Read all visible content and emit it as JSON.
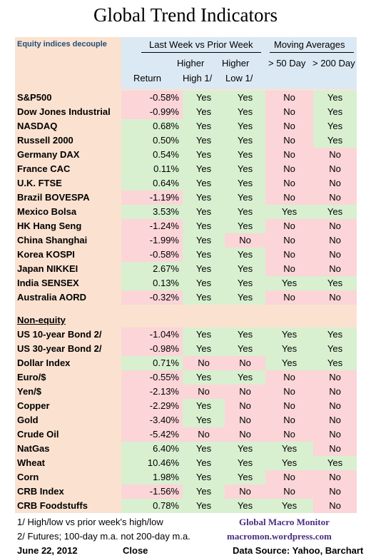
{
  "title": "Global Trend Indicators",
  "subtitle": "Equity indices decouple",
  "header": {
    "group1": "Last Week vs Prior Week",
    "group2": "Moving Averages",
    "return": "Return",
    "higher_high_1": "Higher",
    "higher_high_2": "High 1/",
    "higher_low_1": "Higher",
    "higher_low_2": "Low 1/",
    "ma50": "> 50 Day",
    "ma200": "> 200 Day"
  },
  "equities": [
    {
      "name": "S&P500",
      "ret": "-0.58%",
      "hh": "Yes",
      "hl": "Yes",
      "ma50": "No",
      "ma200": "Yes"
    },
    {
      "name": "Dow Jones Industrial",
      "ret": "-0.99%",
      "hh": "Yes",
      "hl": "Yes",
      "ma50": "No",
      "ma200": "Yes"
    },
    {
      "name": "NASDAQ",
      "ret": "0.68%",
      "hh": "Yes",
      "hl": "Yes",
      "ma50": "No",
      "ma200": "Yes"
    },
    {
      "name": "Russell 2000",
      "ret": "0.50%",
      "hh": "Yes",
      "hl": "Yes",
      "ma50": "No",
      "ma200": "Yes"
    },
    {
      "name": "Germany DAX",
      "ret": "0.54%",
      "hh": "Yes",
      "hl": "Yes",
      "ma50": "No",
      "ma200": "No"
    },
    {
      "name": "France CAC",
      "ret": "0.11%",
      "hh": "Yes",
      "hl": "Yes",
      "ma50": "No",
      "ma200": "No"
    },
    {
      "name": "U.K. FTSE",
      "ret": "0.64%",
      "hh": "Yes",
      "hl": "Yes",
      "ma50": "No",
      "ma200": "No"
    },
    {
      "name": "Brazil BOVESPA",
      "ret": "-1.19%",
      "hh": "Yes",
      "hl": "Yes",
      "ma50": "No",
      "ma200": "No"
    },
    {
      "name": "Mexico Bolsa",
      "ret": "3.53%",
      "hh": "Yes",
      "hl": "Yes",
      "ma50": "Yes",
      "ma200": "Yes"
    },
    {
      "name": "HK  Hang Seng",
      "ret": "-1.24%",
      "hh": "Yes",
      "hl": "Yes",
      "ma50": "No",
      "ma200": "No"
    },
    {
      "name": "China Shanghai",
      "ret": "-1.99%",
      "hh": "Yes",
      "hl": "No",
      "ma50": "No",
      "ma200": "No"
    },
    {
      "name": "Korea KOSPI",
      "ret": "-0.58%",
      "hh": "Yes",
      "hl": "Yes",
      "ma50": "No",
      "ma200": "No"
    },
    {
      "name": "Japan NIKKEI",
      "ret": "2.67%",
      "hh": "Yes",
      "hl": "Yes",
      "ma50": "No",
      "ma200": "No"
    },
    {
      "name": "India SENSEX",
      "ret": "0.13%",
      "hh": "Yes",
      "hl": "Yes",
      "ma50": "Yes",
      "ma200": "Yes"
    },
    {
      "name": "Australia AORD",
      "ret": "-0.32%",
      "hh": "Yes",
      "hl": "Yes",
      "ma50": "No",
      "ma200": "No"
    }
  ],
  "non_equity_label": "Non-equity",
  "non_equity": [
    {
      "name": "US 10-year Bond 2/",
      "ret": "-1.04%",
      "hh": "Yes",
      "hl": "Yes",
      "ma50": "Yes",
      "ma200": "Yes"
    },
    {
      "name": "US 30-year Bond 2/",
      "ret": "-0.98%",
      "hh": "Yes",
      "hl": "Yes",
      "ma50": "Yes",
      "ma200": "Yes"
    },
    {
      "name": "Dollar Index",
      "ret": "0.71%",
      "hh": "No",
      "hl": "No",
      "ma50": "Yes",
      "ma200": "Yes"
    },
    {
      "name": "Euro/$",
      "ret": "-0.55%",
      "hh": "Yes",
      "hl": "Yes",
      "ma50": "No",
      "ma200": "No"
    },
    {
      "name": "Yen/$",
      "ret": "-2.13%",
      "hh": "No",
      "hl": "No",
      "ma50": "No",
      "ma200": "No"
    },
    {
      "name": "Copper",
      "ret": "-2.29%",
      "hh": "Yes",
      "hl": "No",
      "ma50": "No",
      "ma200": "No"
    },
    {
      "name": "Gold",
      "ret": "-3.40%",
      "hh": "Yes",
      "hl": "No",
      "ma50": "No",
      "ma200": "No"
    },
    {
      "name": "Crude Oil",
      "ret": "-5.42%",
      "hh": "No",
      "hl": "No",
      "ma50": "No",
      "ma200": "No"
    },
    {
      "name": "NatGas",
      "ret": "6.40%",
      "hh": "Yes",
      "hl": "Yes",
      "ma50": "Yes",
      "ma200": "No"
    },
    {
      "name": "Wheat",
      "ret": "10.46%",
      "hh": "Yes",
      "hl": "Yes",
      "ma50": "Yes",
      "ma200": "Yes"
    },
    {
      "name": "Corn",
      "ret": "1.98%",
      "hh": "Yes",
      "hl": "Yes",
      "ma50": "No",
      "ma200": "No"
    },
    {
      "name": "CRB Index",
      "ret": "-1.56%",
      "hh": "Yes",
      "hl": "No",
      "ma50": "No",
      "ma200": "No"
    },
    {
      "name": "CRB Foodstuffs",
      "ret": "0.78%",
      "hh": "Yes",
      "hl": "Yes",
      "ma50": "Yes",
      "ma200": "No"
    }
  ],
  "footnotes": {
    "note1": "1/  High/low vs prior week's high/low",
    "note2": "2/  Futures;  100-day m.a. not 200-day m.a.",
    "date": "June 22, 2012",
    "close": "Close",
    "brand": "Global Macro Monitor",
    "site": "macromon.wordpress.com",
    "source": "Data Source: Yahoo, Barchart"
  },
  "colors": {
    "peach": "#fbe2d0",
    "blue": "#dbe9f4",
    "green": "#d8f0d0",
    "red": "#fbd5d8",
    "subtitle": "#1f4e79",
    "brand": "#4b2d7f"
  }
}
